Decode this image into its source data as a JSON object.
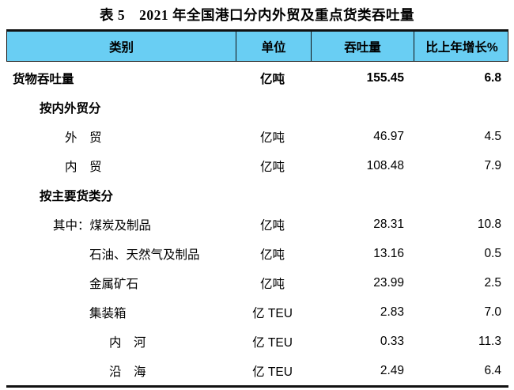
{
  "page": {
    "title": "表 5　2021 年全国港口分内外贸及重点货类吞吐量"
  },
  "table": {
    "colors": {
      "header_bg": "#69CEF3",
      "rule": "#111111"
    },
    "header": {
      "category": "类别",
      "unit": "单位",
      "throughput": "吞吐量",
      "growth": "比上年增长%"
    },
    "rows": [
      {
        "label": "货物吞吐量",
        "unit": "亿吨",
        "throughput": "155.45",
        "growth": "6.8",
        "bold": true,
        "indent": 0
      },
      {
        "label": "按内外贸分",
        "unit": "",
        "throughput": "",
        "growth": "",
        "bold": true,
        "indent": 1
      },
      {
        "label": "外　贸",
        "unit": "亿吨",
        "throughput": "46.97",
        "growth": "4.5",
        "bold": false,
        "indent": 2
      },
      {
        "label": "内　贸",
        "unit": "亿吨",
        "throughput": "108.48",
        "growth": "7.9",
        "bold": false,
        "indent": 2
      },
      {
        "label": "按主要货类分",
        "unit": "",
        "throughput": "",
        "growth": "",
        "bold": true,
        "indent": 1
      },
      {
        "label": "其中：煤炭及制品",
        "unit": "亿吨",
        "throughput": "28.31",
        "growth": "10.8",
        "bold": false,
        "indent": 3
      },
      {
        "label": "石油、天然气及制品",
        "unit": "亿吨",
        "throughput": "13.16",
        "growth": "0.5",
        "bold": false,
        "indent": 4
      },
      {
        "label": "金属矿石",
        "unit": "亿吨",
        "throughput": "23.99",
        "growth": "2.5",
        "bold": false,
        "indent": 4
      },
      {
        "label": "集装箱",
        "unit": "亿 TEU",
        "throughput": "2.83",
        "growth": "7.0",
        "bold": false,
        "indent": 4
      },
      {
        "label": "内　河",
        "unit": "亿 TEU",
        "throughput": "0.33",
        "growth": "11.3",
        "bold": false,
        "indent": 5
      },
      {
        "label": "沿　海",
        "unit": "亿 TEU",
        "throughput": "2.49",
        "growth": "6.4",
        "bold": false,
        "indent": 5
      }
    ]
  }
}
